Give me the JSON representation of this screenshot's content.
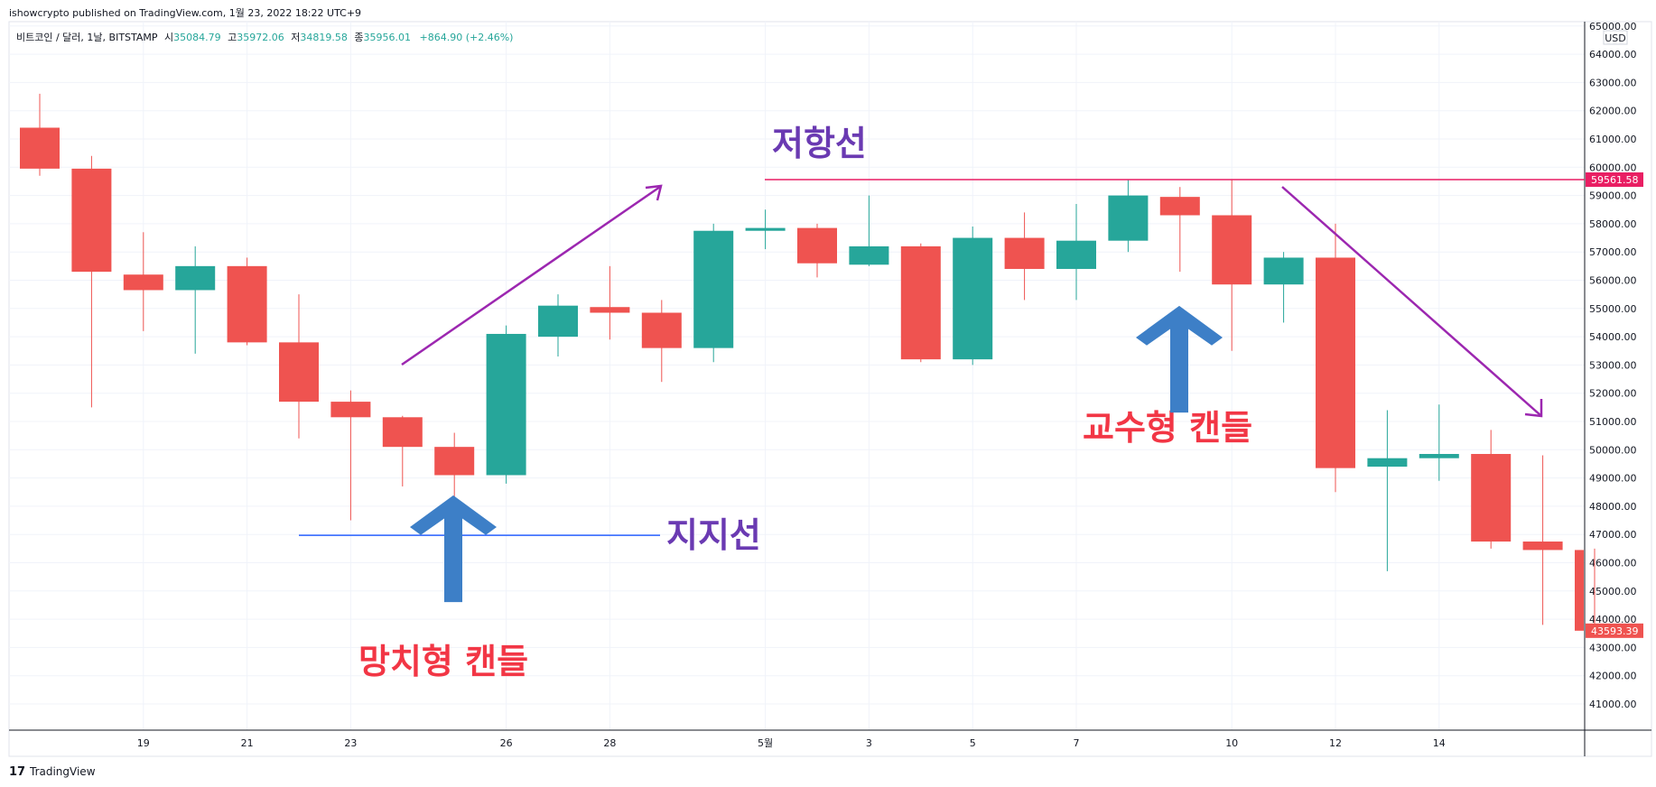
{
  "header": {
    "publisher": "ishowcrypto published on TradingView.com, 1월 23, 2022 18:22 UTC+9",
    "symbol": "비트코인 / 달러, 1날, BITSTAMP",
    "open_label": "시",
    "open": "35084.79",
    "high_label": "고",
    "high": "35972.06",
    "low_label": "저",
    "low": "34819.58",
    "close_label": "종",
    "close": "35956.01",
    "change": "+864.90 (+2.46%)"
  },
  "footer": {
    "brand": "TradingView"
  },
  "colors": {
    "up": "#26a69a",
    "down": "#ef5350",
    "resistance": "#e91e63",
    "support": "#2962ff",
    "trend": "#9c27b0",
    "annotation_purple": "#6a3ab2",
    "annotation_red": "#f23645",
    "arrow_blue": "#3d7fc7"
  },
  "annotations": {
    "resistance": "저항선",
    "support": "지지선",
    "hammer": "망치형 캔들",
    "hanging_man": "교수형 캔들"
  },
  "chart_data": {
    "type": "candlestick",
    "currency": "USD",
    "ylim": [
      40000,
      65000
    ],
    "y_ticks": [
      41000,
      42000,
      43000,
      44000,
      45000,
      46000,
      47000,
      48000,
      49000,
      50000,
      51000,
      52000,
      53000,
      54000,
      55000,
      56000,
      57000,
      58000,
      59000,
      60000,
      61000,
      62000,
      63000,
      64000,
      65000
    ],
    "x_ticks": [
      "19",
      "21",
      "23",
      "26",
      "28",
      "5월",
      "3",
      "5",
      "7",
      "10",
      "12",
      "14"
    ],
    "resistance_level": 59561.58,
    "support_level": 47100,
    "last_price": 43593.39,
    "candles": [
      {
        "date": "4-17",
        "open": 61400,
        "high": 62600,
        "low": 59700,
        "close": 59950
      },
      {
        "date": "4-18",
        "open": 59950,
        "high": 60400,
        "low": 51500,
        "close": 56300
      },
      {
        "date": "4-19",
        "open": 56200,
        "high": 57700,
        "low": 54200,
        "close": 55650
      },
      {
        "date": "4-20",
        "open": 55650,
        "high": 57200,
        "low": 53400,
        "close": 56500
      },
      {
        "date": "4-21",
        "open": 56500,
        "high": 56800,
        "low": 53700,
        "close": 53800
      },
      {
        "date": "4-22",
        "open": 53800,
        "high": 55500,
        "low": 50400,
        "close": 51700
      },
      {
        "date": "4-23",
        "open": 51700,
        "high": 52100,
        "low": 47500,
        "close": 51150
      },
      {
        "date": "4-24",
        "open": 51150,
        "high": 51200,
        "low": 48700,
        "close": 50100
      },
      {
        "date": "4-25",
        "open": 50100,
        "high": 50600,
        "low": 47100,
        "close": 49100
      },
      {
        "date": "4-26",
        "open": 49100,
        "high": 54400,
        "low": 48800,
        "close": 54100
      },
      {
        "date": "4-27",
        "open": 54000,
        "high": 55500,
        "low": 53300,
        "close": 55100
      },
      {
        "date": "4-28",
        "open": 55050,
        "high": 56500,
        "low": 53900,
        "close": 54850
      },
      {
        "date": "4-29",
        "open": 54850,
        "high": 55300,
        "low": 52400,
        "close": 53600
      },
      {
        "date": "4-30",
        "open": 53600,
        "high": 58000,
        "low": 53100,
        "close": 57750
      },
      {
        "date": "5-1",
        "open": 57750,
        "high": 58500,
        "low": 57100,
        "close": 57850
      },
      {
        "date": "5-2",
        "open": 57850,
        "high": 58000,
        "low": 56100,
        "close": 56600
      },
      {
        "date": "5-3",
        "open": 56550,
        "high": 59000,
        "low": 56500,
        "close": 57200
      },
      {
        "date": "5-4",
        "open": 57200,
        "high": 57300,
        "low": 53100,
        "close": 53200
      },
      {
        "date": "5-5",
        "open": 53200,
        "high": 57900,
        "low": 53000,
        "close": 57500
      },
      {
        "date": "5-6",
        "open": 57500,
        "high": 58400,
        "low": 55300,
        "close": 56400
      },
      {
        "date": "5-7",
        "open": 56400,
        "high": 58700,
        "low": 55300,
        "close": 57400
      },
      {
        "date": "5-8",
        "open": 57400,
        "high": 59561,
        "low": 57000,
        "close": 59000
      },
      {
        "date": "5-9",
        "open": 58950,
        "high": 59300,
        "low": 56300,
        "close": 58300
      },
      {
        "date": "5-10",
        "open": 58300,
        "high": 59561,
        "low": 53500,
        "close": 55850
      },
      {
        "date": "5-11",
        "open": 55850,
        "high": 57000,
        "low": 54500,
        "close": 56800
      },
      {
        "date": "5-12",
        "open": 56800,
        "high": 58000,
        "low": 48500,
        "close": 49350
      },
      {
        "date": "5-13",
        "open": 49400,
        "high": 51400,
        "low": 45700,
        "close": 49700
      },
      {
        "date": "5-14",
        "open": 49700,
        "high": 51600,
        "low": 48900,
        "close": 49850
      },
      {
        "date": "5-15",
        "open": 49850,
        "high": 50700,
        "low": 46500,
        "close": 46750
      },
      {
        "date": "5-16",
        "open": 46750,
        "high": 49800,
        "low": 43800,
        "close": 46450
      },
      {
        "date": "5-17",
        "open": 46450,
        "high": 46500,
        "low": 43550,
        "close": 43593
      }
    ]
  }
}
